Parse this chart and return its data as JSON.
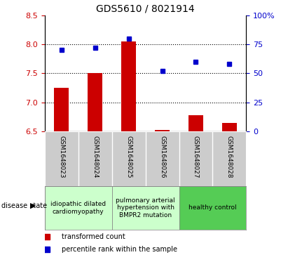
{
  "title": "GDS5610 / 8021914",
  "samples": [
    "GSM1648023",
    "GSM1648024",
    "GSM1648025",
    "GSM1648026",
    "GSM1648027",
    "GSM1648028"
  ],
  "bar_values": [
    7.25,
    7.5,
    8.05,
    6.52,
    6.78,
    6.65
  ],
  "dot_values": [
    70,
    72,
    80,
    52,
    60,
    58
  ],
  "ylim_left": [
    6.5,
    8.5
  ],
  "ylim_right": [
    0,
    100
  ],
  "yticks_left": [
    6.5,
    7.0,
    7.5,
    8.0,
    8.5
  ],
  "yticks_right": [
    0,
    25,
    50,
    75,
    100
  ],
  "ytick_labels_right": [
    "0",
    "25",
    "50",
    "75",
    "100%"
  ],
  "hlines": [
    7.0,
    7.5,
    8.0
  ],
  "bar_color": "#cc0000",
  "dot_color": "#0000cc",
  "left_tick_color": "#cc0000",
  "right_tick_color": "#0000cc",
  "sample_box_color": "#cccccc",
  "group1_color": "#ccffcc",
  "group2_color": "#ccffcc",
  "group3_color": "#55cc55",
  "group_labels": [
    "idiopathic dilated\ncardiomyopathy",
    "pulmonary arterial\nhypertension with\nBMPR2 mutation",
    "healthy control"
  ],
  "group_starts": [
    0,
    2,
    4
  ],
  "group_ends": [
    2,
    4,
    6
  ],
  "disease_state_label": "disease state",
  "legend_bar_label": "transformed count",
  "legend_dot_label": "percentile rank within the sample"
}
